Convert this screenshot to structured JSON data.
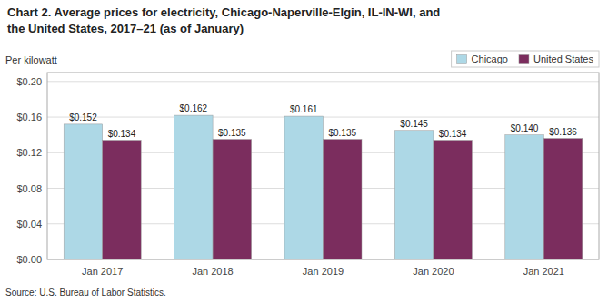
{
  "chart_data": {
    "type": "bar",
    "title": "Chart 2. Average prices for electricity, Chicago-Naperville-Elgin,  IL-IN-WI, and",
    "subtitle": "the United States, 2017–21 (as of January)",
    "ylabel": "Per kilowatt",
    "source": "Source: U.S. Bureau of Labor Statistics.",
    "categories": [
      "Jan 2017",
      "Jan 2018",
      "Jan 2019",
      "Jan 2020",
      "Jan 2021"
    ],
    "series": [
      {
        "name": "Chicago",
        "color": "#ADD8E6",
        "values": [
          0.152,
          0.162,
          0.161,
          0.145,
          0.14
        ],
        "value_labels": [
          "$0.152",
          "$0.162",
          "$0.161",
          "$0.145",
          "$0.140"
        ]
      },
      {
        "name": "United States",
        "color": "#7B2D5E",
        "values": [
          0.134,
          0.135,
          0.135,
          0.134,
          0.136
        ],
        "value_labels": [
          "$0.134",
          "$0.135",
          "$0.135",
          "$0.134",
          "$0.136"
        ]
      }
    ],
    "ylim": [
      0.0,
      0.21
    ],
    "yticks": [
      {
        "value": 0.0,
        "label": "$0.00"
      },
      {
        "value": 0.04,
        "label": "$0.04"
      },
      {
        "value": 0.08,
        "label": "$0.08"
      },
      {
        "value": 0.12,
        "label": "$0.12"
      },
      {
        "value": 0.16,
        "label": "$0.16"
      },
      {
        "value": 0.2,
        "label": "$0.20"
      }
    ],
    "grid": true,
    "legend": "upper right",
    "data_labels": true
  }
}
